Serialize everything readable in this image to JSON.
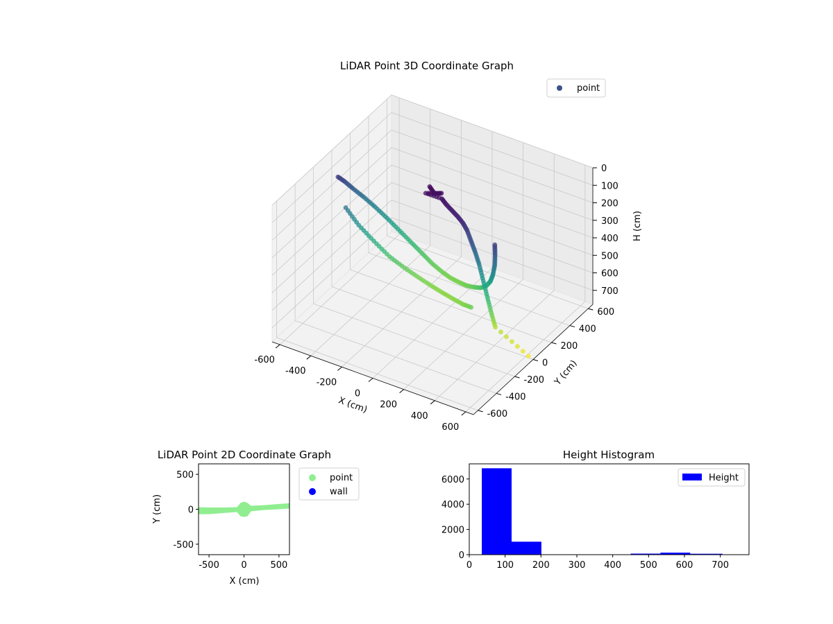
{
  "chart_data": [
    {
      "type": "scatter",
      "projection": "3d",
      "title": "LiDAR Point 3D Coordinate Graph",
      "xlabel": "X (cm)",
      "ylabel": "Y (cm)",
      "zlabel": "H (cm)",
      "xlim": [
        -650,
        650
      ],
      "ylim": [
        -650,
        650
      ],
      "zlim": [
        0,
        780
      ],
      "z_inverted": true,
      "xticks": [
        "-600",
        "-400",
        "-200",
        "0",
        "200",
        "400",
        "600"
      ],
      "yticks": [
        "-600",
        "-400",
        "-200",
        "0",
        "200",
        "400",
        "600"
      ],
      "zticks": [
        "0",
        "100",
        "200",
        "300",
        "400",
        "500",
        "600",
        "700"
      ],
      "xtick_values": [
        -600,
        -400,
        -200,
        0,
        200,
        400,
        600
      ],
      "ytick_values": [
        -600,
        -400,
        -200,
        0,
        200,
        400,
        600
      ],
      "ztick_values": [
        0,
        100,
        200,
        300,
        400,
        500,
        600,
        700
      ],
      "colormap": "viridis",
      "legend": [
        {
          "name": "point",
          "color": "#3b528b"
        }
      ],
      "legend_position": "upper right",
      "grid": true,
      "series": [
        {
          "name": "point",
          "note_color_by": "height",
          "points": [
            [
              -610,
              0,
              140
            ],
            [
              -590,
              40,
              180
            ],
            [
              -560,
              80,
              230
            ],
            [
              -520,
              130,
              290
            ],
            [
              -470,
              170,
              350
            ],
            [
              -410,
              200,
              410
            ],
            [
              -340,
              220,
              470
            ],
            [
              -270,
              230,
              520
            ],
            [
              -200,
              230,
              560
            ],
            [
              -130,
              220,
              590
            ],
            [
              -60,
              210,
              610
            ],
            [
              0,
              200,
              620
            ],
            [
              60,
              190,
              620
            ],
            [
              120,
              170,
              610
            ],
            [
              180,
              150,
              590
            ],
            [
              240,
              120,
              560
            ],
            [
              300,
              80,
              510
            ],
            [
              350,
              40,
              450
            ],
            [
              390,
              0,
              380
            ],
            [
              420,
              -30,
              300
            ],
            [
              440,
              -60,
              220
            ],
            [
              450,
              -80,
              150
            ],
            [
              -560,
              0,
              300
            ],
            [
              -500,
              40,
              400
            ],
            [
              -420,
              70,
              480
            ],
            [
              -330,
              90,
              550
            ],
            [
              -240,
              100,
              590
            ],
            [
              -150,
              100,
              615
            ],
            [
              -60,
              90,
              630
            ],
            [
              20,
              80,
              640
            ],
            [
              100,
              60,
              640
            ],
            [
              180,
              30,
              630
            ],
            [
              250,
              0,
              610
            ],
            [
              -30,
              20,
              20
            ],
            [
              20,
              -10,
              30
            ],
            [
              40,
              30,
              40
            ],
            [
              -20,
              -40,
              25
            ],
            [
              60,
              0,
              50
            ],
            [
              100,
              -20,
              60
            ],
            [
              150,
              -40,
              70
            ],
            [
              200,
              -60,
              80
            ],
            [
              240,
              -70,
              100
            ],
            [
              260,
              -60,
              140
            ],
            [
              280,
              -50,
              200
            ],
            [
              300,
              -40,
              260
            ],
            [
              320,
              -30,
              330
            ],
            [
              340,
              -20,
              420
            ],
            [
              360,
              -10,
              510
            ],
            [
              380,
              0,
              600
            ],
            [
              400,
              10,
              680
            ],
            [
              620,
              0,
              770
            ]
          ]
        }
      ]
    },
    {
      "type": "scatter",
      "title": "LiDAR Point 2D Coordinate Graph",
      "xlabel": "X (cm)",
      "ylabel": "Y (cm)",
      "xlim": [
        -650,
        650
      ],
      "ylim": [
        -650,
        650
      ],
      "xticks": [
        "-500",
        "0",
        "500"
      ],
      "yticks": [
        "-500",
        "0",
        "500"
      ],
      "xtick_values": [
        -500,
        0,
        500
      ],
      "ytick_values": [
        -500,
        0,
        500
      ],
      "legend_position": "outside right",
      "series": [
        {
          "name": "point",
          "color": "#90ee90",
          "band": {
            "x": [
              -650,
              -500,
              -300,
              -100,
              -50,
              0,
              50,
              100,
              300,
              500,
              650
            ],
            "y_lo": [
              -70,
              -70,
              -55,
              -40,
              -100,
              -110,
              -100,
              -30,
              -10,
              0,
              10
            ],
            "y_hi": [
              30,
              25,
              25,
              30,
              90,
              110,
              90,
              50,
              60,
              75,
              85
            ]
          }
        },
        {
          "name": "wall",
          "color": "#0000ff",
          "points": []
        }
      ]
    },
    {
      "type": "bar",
      "title": "Height Histogram",
      "xlabel": "",
      "ylabel": "",
      "xlim": [
        0,
        780
      ],
      "ylim": [
        0,
        7200
      ],
      "xticks": [
        "0",
        "100",
        "200",
        "300",
        "400",
        "500",
        "600",
        "700"
      ],
      "yticks": [
        "0",
        "2000",
        "4000",
        "6000"
      ],
      "xtick_values": [
        0,
        100,
        200,
        300,
        400,
        500,
        600,
        700
      ],
      "ytick_values": [
        0,
        2000,
        4000,
        6000
      ],
      "color": "#0000ff",
      "legend": [
        {
          "name": "Height",
          "color": "#0000ff"
        }
      ],
      "legend_position": "upper right",
      "bins": [
        {
          "start": 35,
          "end": 118,
          "count": 6850
        },
        {
          "start": 118,
          "end": 201,
          "count": 1030
        },
        {
          "start": 201,
          "end": 284,
          "count": 30
        },
        {
          "start": 284,
          "end": 367,
          "count": 25
        },
        {
          "start": 367,
          "end": 450,
          "count": 20
        },
        {
          "start": 450,
          "end": 533,
          "count": 80
        },
        {
          "start": 533,
          "end": 616,
          "count": 160
        },
        {
          "start": 616,
          "end": 706,
          "count": 70
        }
      ]
    }
  ]
}
